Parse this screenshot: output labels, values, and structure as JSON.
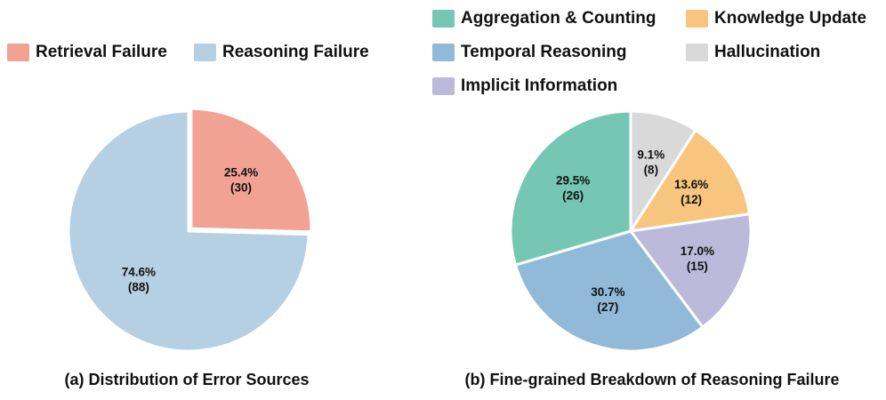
{
  "chart_data": [
    {
      "type": "pie",
      "title": "(a) Distribution of Error Sources",
      "legend_position": "top",
      "slices": [
        {
          "label": "Retrieval Failure",
          "value": 30,
          "percent_label": "25.4%",
          "count_label": "(30)",
          "color": "#f2a293",
          "exploded": true
        },
        {
          "label": "Reasoning Failure",
          "value": 88,
          "percent_label": "74.6%",
          "count_label": "(88)",
          "color": "#b5cfe3",
          "exploded": false
        }
      ]
    },
    {
      "type": "pie",
      "title": "(b) Fine-grained Breakdown of Reasoning Failure",
      "legend_position": "top",
      "slices": [
        {
          "label": "Hallucination",
          "value": 8,
          "percent_label": "9.1%",
          "count_label": "(8)",
          "color": "#d9d9d9"
        },
        {
          "label": "Knowledge Update",
          "value": 12,
          "percent_label": "13.6%",
          "count_label": "(12)",
          "color": "#f7c57e"
        },
        {
          "label": "Implicit Information",
          "value": 15,
          "percent_label": "17.0%",
          "count_label": "(15)",
          "color": "#bcb9da"
        },
        {
          "label": "Temporal Reasoning",
          "value": 27,
          "percent_label": "30.7%",
          "count_label": "(27)",
          "color": "#90bad8"
        },
        {
          "label": "Aggregation & Counting",
          "value": 26,
          "percent_label": "29.5%",
          "count_label": "(26)",
          "color": "#76c6b4"
        }
      ]
    }
  ]
}
